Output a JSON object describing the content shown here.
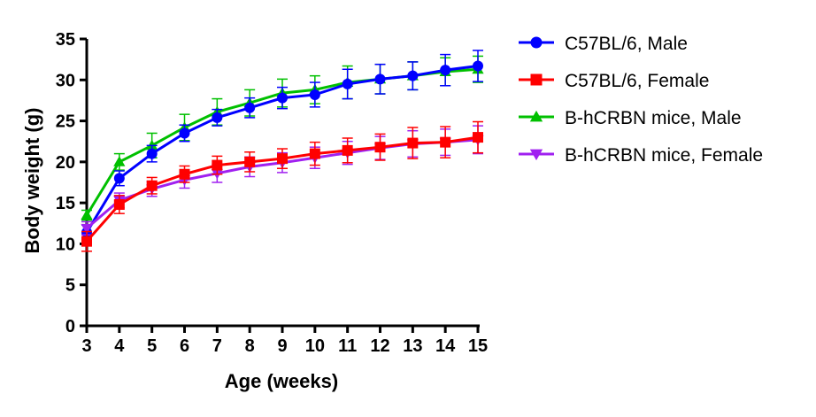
{
  "chart_data": {
    "type": "line",
    "title": "",
    "xlabel": "Age (weeks)",
    "ylabel": "Body weight (g)",
    "xlim": [
      3,
      15
    ],
    "ylim": [
      0,
      35
    ],
    "x_ticks": [
      3,
      4,
      5,
      6,
      7,
      8,
      9,
      10,
      11,
      12,
      13,
      14,
      15
    ],
    "y_ticks": [
      0,
      5,
      10,
      15,
      20,
      25,
      30,
      35
    ],
    "grid": false,
    "legend_position": "right",
    "x": [
      3,
      4,
      5,
      6,
      7,
      8,
      9,
      10,
      11,
      12,
      13,
      14,
      15
    ],
    "series": [
      {
        "name": "C57BL/6, Male",
        "color": "#0000ff",
        "marker": "circle",
        "values": [
          11.4,
          18.0,
          21.0,
          23.5,
          25.4,
          26.6,
          27.8,
          28.2,
          29.5,
          30.1,
          30.5,
          31.2,
          31.7
        ],
        "errors": [
          0.9,
          0.9,
          1.0,
          1.0,
          1.0,
          1.2,
          1.3,
          1.5,
          1.8,
          1.8,
          1.7,
          1.9,
          1.9
        ]
      },
      {
        "name": "C57BL/6, Female",
        "color": "#ff0000",
        "marker": "square",
        "values": [
          10.3,
          14.8,
          17.1,
          18.5,
          19.6,
          20.0,
          20.4,
          21.0,
          21.4,
          21.8,
          22.3,
          22.4,
          23.0
        ],
        "errors": [
          1.2,
          1.1,
          1.0,
          1.0,
          1.1,
          1.2,
          1.2,
          1.4,
          1.5,
          1.6,
          1.9,
          1.9,
          1.9
        ]
      },
      {
        "name": "B-hCRBN mice, Male",
        "color": "#00c000",
        "marker": "triangle-up",
        "values": [
          13.5,
          20.0,
          22.0,
          24.2,
          26.1,
          27.2,
          28.4,
          28.8,
          29.7,
          30.1,
          30.5,
          31.0,
          31.3
        ],
        "errors": [
          0.6,
          1.0,
          1.5,
          1.6,
          1.6,
          1.6,
          1.7,
          1.7,
          2.0,
          1.8,
          1.7,
          1.7,
          1.6
        ]
      },
      {
        "name": "B-hCRBN mice, Female",
        "color": "#a020f0",
        "marker": "triangle-down",
        "values": [
          11.9,
          15.3,
          16.7,
          17.8,
          18.6,
          19.4,
          19.9,
          20.5,
          21.1,
          21.7,
          22.2,
          22.4,
          22.7
        ],
        "errors": [
          0.8,
          0.9,
          0.9,
          1.0,
          1.1,
          1.2,
          1.2,
          1.3,
          1.4,
          1.4,
          1.6,
          1.6,
          1.7
        ]
      }
    ]
  }
}
